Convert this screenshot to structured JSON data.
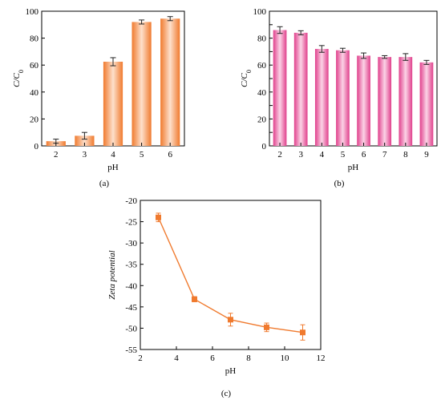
{
  "panels": {
    "a": {
      "label": "(a)"
    },
    "b": {
      "label": "(b)"
    },
    "c": {
      "label": "(c)"
    }
  },
  "chart_data": [
    {
      "panel": "a",
      "type": "bar",
      "xlabel": "pH",
      "ylabel": "C/C",
      "ylabel_sub": "0",
      "categories": [
        "2",
        "3",
        "4",
        "5",
        "6"
      ],
      "series": [
        {
          "values": [
            3.5,
            7.5,
            62.5,
            92,
            94.5
          ],
          "errors": [
            1.5,
            2.5,
            3.0,
            1.5,
            1.5
          ]
        }
      ],
      "ylim": [
        0,
        100
      ],
      "yticks": [
        0,
        20,
        40,
        60,
        80,
        100
      ],
      "grid": false,
      "colors": {
        "bar_edge": "#f07a2e",
        "bar_mid": "#fde0cc"
      }
    },
    {
      "panel": "b",
      "type": "bar",
      "xlabel": "pH",
      "ylabel": "C/C",
      "ylabel_sub": "0",
      "categories": [
        "2",
        "3",
        "4",
        "5",
        "6",
        "7",
        "8",
        "9"
      ],
      "series": [
        {
          "values": [
            86,
            84,
            72,
            71,
            67,
            66,
            66,
            62
          ],
          "errors": [
            2.5,
            1.5,
            2.5,
            1.5,
            2.0,
            1.0,
            2.5,
            1.5
          ]
        }
      ],
      "ylim": [
        0,
        100
      ],
      "yticks": [
        0,
        10,
        20,
        30,
        40,
        50,
        60,
        70,
        80,
        90,
        100
      ],
      "ytick_labels": [
        0,
        20,
        40,
        60,
        80,
        100
      ],
      "grid": false,
      "colors": {
        "bar_edge": "#e0408c",
        "bar_mid": "#fbd3e6"
      }
    },
    {
      "panel": "c",
      "type": "line",
      "xlabel": "pH",
      "ylabel": "Zeta potential",
      "series": [
        {
          "x": [
            3,
            5,
            7,
            9,
            11
          ],
          "y": [
            -24,
            -43.2,
            -48,
            -49.8,
            -51
          ],
          "errors": [
            1.0,
            0.6,
            1.5,
            1.0,
            1.8
          ]
        }
      ],
      "xlim": [
        2,
        12
      ],
      "ylim": [
        -55,
        -20
      ],
      "xticks": [
        2,
        4,
        6,
        8,
        10,
        12
      ],
      "yticks": [
        -20,
        -25,
        -30,
        -35,
        -40,
        -45,
        -50,
        -55
      ],
      "grid": false,
      "colors": {
        "line": "#f07a2e",
        "marker": "#f07a2e"
      }
    }
  ]
}
